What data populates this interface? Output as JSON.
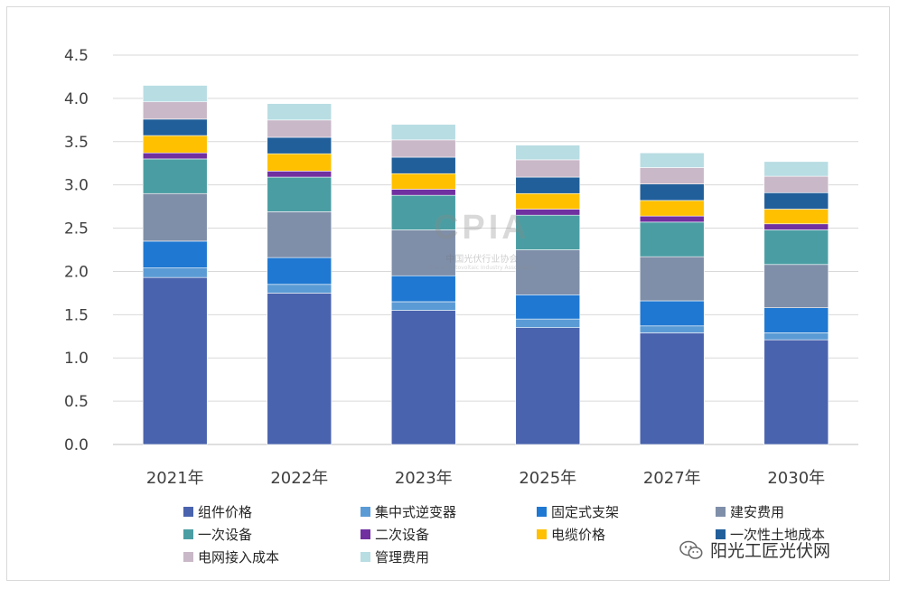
{
  "chart_data": {
    "type": "bar",
    "stacked": true,
    "title": "",
    "xlabel": "",
    "ylabel": "",
    "ylim": [
      0,
      4.5
    ],
    "yticks": [
      "0.0",
      "0.5",
      "1.0",
      "1.5",
      "2.0",
      "2.5",
      "3.0",
      "3.5",
      "4.0",
      "4.5"
    ],
    "grid": true,
    "legend_position": "bottom",
    "categories": [
      "2021年",
      "2022年",
      "2023年",
      "2025年",
      "2027年",
      "2030年"
    ],
    "series": [
      {
        "name": "组件价格",
        "color": "#4a63ae",
        "values": [
          1.93,
          1.75,
          1.55,
          1.35,
          1.29,
          1.21
        ]
      },
      {
        "name": "集中式逆变器",
        "color": "#5b9bd5",
        "values": [
          0.11,
          0.1,
          0.1,
          0.1,
          0.08,
          0.08
        ]
      },
      {
        "name": "固定式支架",
        "color": "#1f78d1",
        "values": [
          0.31,
          0.31,
          0.3,
          0.28,
          0.29,
          0.29
        ]
      },
      {
        "name": "建安费用",
        "color": "#7f8fa9",
        "values": [
          0.55,
          0.53,
          0.53,
          0.52,
          0.51,
          0.5
        ]
      },
      {
        "name": "一次设备",
        "color": "#4a9ea3",
        "values": [
          0.4,
          0.4,
          0.4,
          0.4,
          0.4,
          0.4
        ]
      },
      {
        "name": "二次设备",
        "color": "#7030a0",
        "values": [
          0.07,
          0.07,
          0.07,
          0.07,
          0.07,
          0.07
        ]
      },
      {
        "name": "电缆价格",
        "color": "#ffc000",
        "values": [
          0.2,
          0.2,
          0.18,
          0.18,
          0.18,
          0.17
        ]
      },
      {
        "name": "一次性土地成本",
        "color": "#215f9a",
        "values": [
          0.19,
          0.19,
          0.19,
          0.19,
          0.19,
          0.19
        ]
      },
      {
        "name": "电网接入成本",
        "color": "#c9b8c8",
        "values": [
          0.2,
          0.2,
          0.2,
          0.2,
          0.19,
          0.19
        ]
      },
      {
        "name": "管理费用",
        "color": "#b8dde3",
        "values": [
          0.19,
          0.19,
          0.18,
          0.17,
          0.17,
          0.17
        ]
      }
    ]
  },
  "watermark": {
    "text": "CPIA",
    "org_cn": "中国光伏行业协会",
    "org_en": "China Photovoltaic Industry Association"
  },
  "source": {
    "icon": "wechat-icon",
    "label": "阳光工匠光伏网"
  }
}
